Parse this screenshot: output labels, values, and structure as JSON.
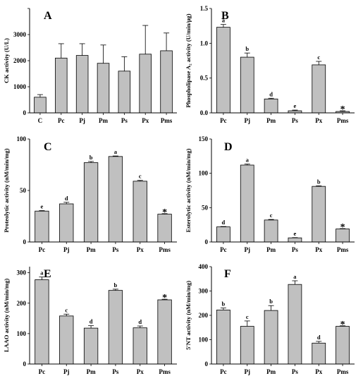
{
  "chart_data": [
    {
      "panel": "A",
      "type": "bar",
      "ylabel": "CK activity (U/L)",
      "categories": [
        "C",
        "Pc",
        "Pj",
        "Pm",
        "Ps",
        "Px",
        "Pms"
      ],
      "values": [
        600,
        2100,
        2200,
        1900,
        1600,
        2250,
        2380
      ],
      "errors": [
        100,
        550,
        450,
        700,
        550,
        1100,
        680
      ],
      "sig": [
        "",
        "",
        "",
        "",
        "",
        "",
        ""
      ],
      "ylim": [
        0,
        4000
      ],
      "yticks": [
        0,
        1000,
        2000,
        3000,
        4000
      ],
      "yticklabels": [
        "0",
        "1000",
        "2000",
        "3000",
        ""
      ]
    },
    {
      "panel": "B",
      "type": "bar",
      "ylabel": "Phospholipase A₂ activity (U/min/μg)",
      "categories": [
        "Pc",
        "Pj",
        "Pm",
        "Ps",
        "Px",
        "Pms"
      ],
      "values": [
        1.23,
        0.8,
        0.2,
        0.03,
        0.69,
        0.02
      ],
      "errors": [
        0.04,
        0.06,
        0.01,
        0.01,
        0.05,
        0.01
      ],
      "sig": [
        "a",
        "b",
        "d",
        "e",
        "c",
        "*"
      ],
      "ylim": [
        0,
        1.5
      ],
      "yticks": [
        0,
        0.5,
        1.0,
        1.5
      ],
      "yticklabels": [
        "0.0",
        "0.5",
        "1.0",
        "1.5"
      ]
    },
    {
      "panel": "C",
      "type": "bar",
      "ylabel": "Proteolytic activity (nM/min/mg)",
      "categories": [
        "Pc",
        "Pj",
        "Pm",
        "Ps",
        "Px",
        "Pms"
      ],
      "values": [
        30,
        37,
        77,
        83,
        59,
        27
      ],
      "errors": [
        0.5,
        1.5,
        1.2,
        0.5,
        0.8,
        0.5
      ],
      "sig": [
        "e",
        "d",
        "b",
        "a",
        "c",
        "*"
      ],
      "ylim": [
        0,
        100
      ],
      "yticks": [
        0,
        50,
        100
      ],
      "yticklabels": [
        "0",
        "50",
        "100"
      ]
    },
    {
      "panel": "D",
      "type": "bar",
      "ylabel": "Esterolytic activity (nM/min/mg)",
      "categories": [
        "Pc",
        "Pj",
        "Pm",
        "Ps",
        "Px",
        "Pms"
      ],
      "values": [
        22,
        112,
        32,
        6,
        81,
        19
      ],
      "errors": [
        0.5,
        1.5,
        0.8,
        0.4,
        0.8,
        0.5
      ],
      "sig": [
        "d",
        "a",
        "c",
        "e",
        "b",
        "*"
      ],
      "ylim": [
        0,
        150
      ],
      "yticks": [
        0,
        50,
        100,
        150
      ],
      "yticklabels": [
        "0",
        "50",
        "100",
        "150"
      ]
    },
    {
      "panel": "E",
      "type": "bar",
      "ylabel": "LAAO activity (nM/min/mg)",
      "categories": [
        "Pc",
        "Pj",
        "Pm",
        "Ps",
        "Px",
        "Pms"
      ],
      "values": [
        277,
        158,
        118,
        242,
        119,
        211
      ],
      "errors": [
        9,
        6,
        8,
        4,
        6,
        2
      ],
      "sig": [
        "a",
        "c",
        "d",
        "b",
        "d",
        "*"
      ],
      "ylim": [
        0,
        320
      ],
      "yticks": [
        0,
        100,
        200,
        300
      ],
      "yticklabels": [
        "0",
        "100",
        "200",
        "300"
      ]
    },
    {
      "panel": "F",
      "type": "bar",
      "ylabel": "5′NT activity (nM/min/mg)",
      "categories": [
        "Pc",
        "Pj",
        "Pm",
        "Ps",
        "Px",
        "Pms"
      ],
      "values": [
        222,
        155,
        220,
        327,
        86,
        155
      ],
      "errors": [
        8,
        22,
        20,
        15,
        7,
        2
      ],
      "sig": [
        "b",
        "c",
        "b",
        "a",
        "d",
        "*"
      ],
      "ylim": [
        0,
        400
      ],
      "yticks": [
        0,
        100,
        200,
        300,
        400
      ],
      "yticklabels": [
        "0",
        "100",
        "200",
        "300",
        "400"
      ]
    }
  ],
  "style": {
    "bar_fill": "#c0c0c0",
    "bar_stroke": "#000000",
    "axis_color": "#000000"
  }
}
